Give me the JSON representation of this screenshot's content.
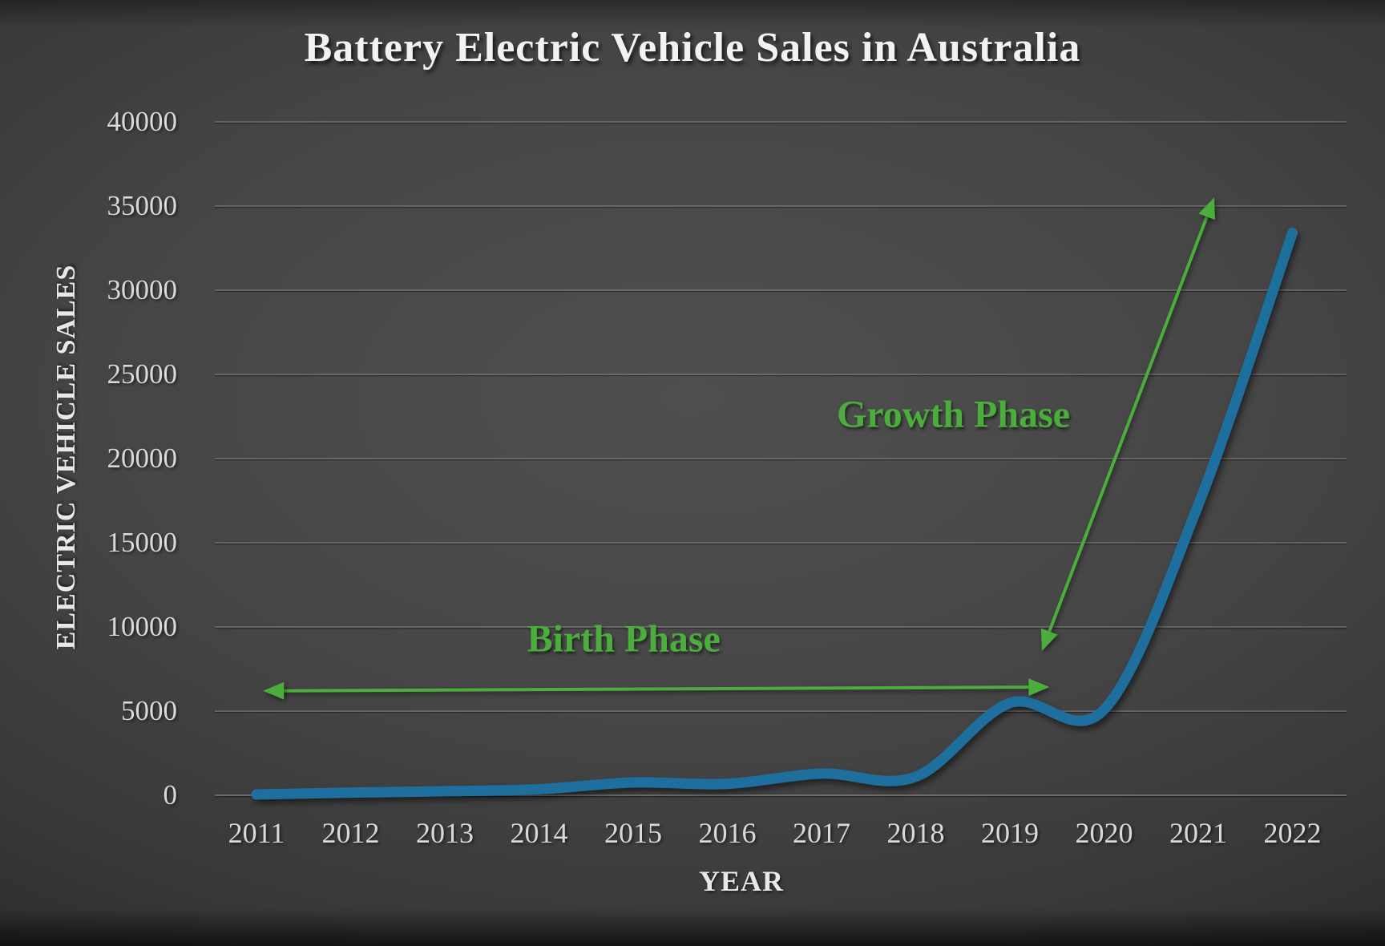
{
  "chart_data": {
    "type": "line",
    "title": "Battery Electric Vehicle Sales in Australia",
    "xlabel": "YEAR",
    "ylabel": "ELECTRIC VEHICLE SALES",
    "categories": [
      "2011",
      "2012",
      "2013",
      "2014",
      "2015",
      "2016",
      "2017",
      "2018",
      "2019",
      "2020",
      "2021",
      "2022"
    ],
    "series": [
      {
        "name": "Battery Electric Vehicle Sales",
        "color": "#1F6F9E",
        "values": [
          50,
          160,
          240,
          360,
          760,
          680,
          1290,
          1100,
          5480,
          5090,
          17250,
          33400
        ]
      }
    ],
    "ylim": [
      0,
      40000
    ],
    "ytick_step": 5000,
    "yticks": [
      "0",
      "5000",
      "10000",
      "15000",
      "20000",
      "25000",
      "30000",
      "35000",
      "40000"
    ],
    "grid": "horizontal",
    "legend": "none",
    "annotations": {
      "color": "#4BAD3B",
      "labels": [
        {
          "text": "Birth Phase",
          "x": 2014.9,
          "y": 9300
        },
        {
          "text": "Growth Phase",
          "x": 2018.4,
          "y": 22600
        }
      ],
      "arrows": [
        {
          "name": "birth-phase-arrow",
          "x1": 2011.07,
          "y1": 6200,
          "x2": 2019.42,
          "y2": 6430,
          "double": true
        },
        {
          "name": "growth-phase-arrow",
          "x1": 2019.34,
          "y1": 8570,
          "x2": 2021.17,
          "y2": 35520,
          "double": true
        }
      ]
    }
  }
}
